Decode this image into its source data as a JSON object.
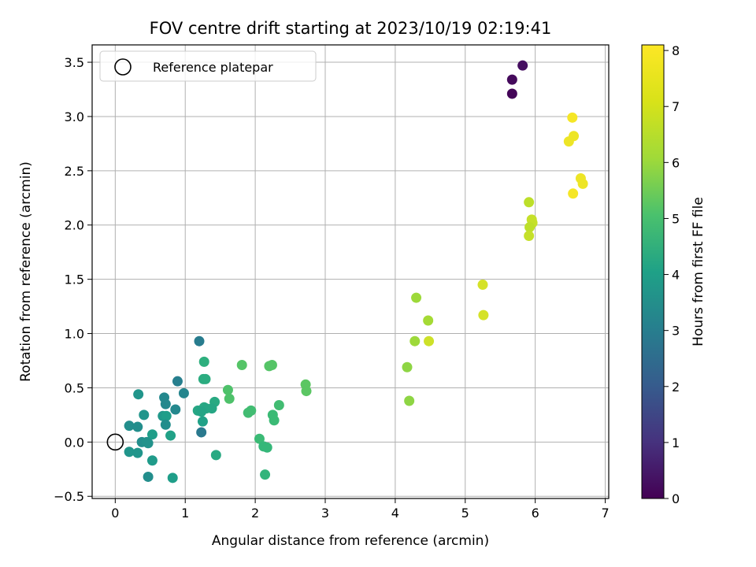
{
  "chart_data": {
    "type": "scatter",
    "title": "FOV centre drift starting at 2023/10/19 02:19:41",
    "xlabel": "Angular distance from reference (arcmin)",
    "ylabel": "Rotation from reference (arcmin)",
    "xlim": [
      -0.33,
      7.05
    ],
    "ylim": [
      -0.52,
      3.66
    ],
    "xticks": [
      "0",
      "1",
      "2",
      "3",
      "4",
      "5",
      "6",
      "7"
    ],
    "yticks": [
      "−0.5",
      "0.0",
      "0.5",
      "1.0",
      "1.5",
      "2.0",
      "2.5",
      "3.0",
      "3.5"
    ],
    "grid": true,
    "legend": {
      "placement": "top-left",
      "entries": [
        "Reference platepar"
      ]
    },
    "reference_point": {
      "x": 0.0,
      "y": 0.0
    },
    "colorbar": {
      "label": "Hours from first FF file",
      "colormap": "viridis",
      "range": [
        0,
        8.1
      ],
      "ticks": [
        "0",
        "1",
        "2",
        "3",
        "4",
        "5",
        "6",
        "7",
        "8"
      ]
    },
    "points": [
      {
        "x": 5.82,
        "y": 3.47,
        "h": 0.3
      },
      {
        "x": 5.67,
        "y": 3.34,
        "h": 0.2
      },
      {
        "x": 5.67,
        "y": 3.21,
        "h": 0.1
      },
      {
        "x": 6.53,
        "y": 2.99,
        "h": 8.0
      },
      {
        "x": 6.55,
        "y": 2.82,
        "h": 7.9
      },
      {
        "x": 6.48,
        "y": 2.77,
        "h": 7.9
      },
      {
        "x": 6.65,
        "y": 2.43,
        "h": 7.9
      },
      {
        "x": 6.68,
        "y": 2.38,
        "h": 7.9
      },
      {
        "x": 6.54,
        "y": 2.29,
        "h": 8.0
      },
      {
        "x": 5.91,
        "y": 2.21,
        "h": 7.3
      },
      {
        "x": 5.95,
        "y": 2.05,
        "h": 7.4
      },
      {
        "x": 5.96,
        "y": 2.02,
        "h": 7.4
      },
      {
        "x": 5.92,
        "y": 1.98,
        "h": 7.3
      },
      {
        "x": 5.91,
        "y": 1.9,
        "h": 7.4
      },
      {
        "x": 5.25,
        "y": 1.45,
        "h": 7.6
      },
      {
        "x": 5.26,
        "y": 1.17,
        "h": 7.6
      },
      {
        "x": 4.3,
        "y": 1.33,
        "h": 6.9
      },
      {
        "x": 4.47,
        "y": 1.12,
        "h": 7.0
      },
      {
        "x": 4.28,
        "y": 0.93,
        "h": 6.9
      },
      {
        "x": 4.48,
        "y": 0.93,
        "h": 7.5
      },
      {
        "x": 4.17,
        "y": 0.69,
        "h": 6.7
      },
      {
        "x": 4.2,
        "y": 0.38,
        "h": 6.7
      },
      {
        "x": 2.72,
        "y": 0.53,
        "h": 6.0
      },
      {
        "x": 2.73,
        "y": 0.47,
        "h": 6.0
      },
      {
        "x": 2.24,
        "y": 0.71,
        "h": 5.9
      },
      {
        "x": 2.2,
        "y": 0.7,
        "h": 5.9
      },
      {
        "x": 1.81,
        "y": 0.71,
        "h": 5.9
      },
      {
        "x": 1.61,
        "y": 0.48,
        "h": 5.8
      },
      {
        "x": 1.63,
        "y": 0.4,
        "h": 5.8
      },
      {
        "x": 2.34,
        "y": 0.34,
        "h": 5.6
      },
      {
        "x": 1.94,
        "y": 0.29,
        "h": 5.6
      },
      {
        "x": 1.9,
        "y": 0.27,
        "h": 5.6
      },
      {
        "x": 2.25,
        "y": 0.25,
        "h": 5.5
      },
      {
        "x": 2.27,
        "y": 0.2,
        "h": 5.5
      },
      {
        "x": 2.06,
        "y": 0.03,
        "h": 5.5
      },
      {
        "x": 2.12,
        "y": -0.04,
        "h": 5.4
      },
      {
        "x": 2.17,
        "y": -0.05,
        "h": 5.4
      },
      {
        "x": 2.14,
        "y": -0.3,
        "h": 5.3
      },
      {
        "x": 1.44,
        "y": -0.12,
        "h": 4.9
      },
      {
        "x": 1.27,
        "y": 0.74,
        "h": 5.1
      },
      {
        "x": 1.26,
        "y": 0.58,
        "h": 5.0
      },
      {
        "x": 1.29,
        "y": 0.58,
        "h": 5.0
      },
      {
        "x": 1.42,
        "y": 0.37,
        "h": 4.9
      },
      {
        "x": 1.27,
        "y": 0.32,
        "h": 4.9
      },
      {
        "x": 1.3,
        "y": 0.31,
        "h": 4.8
      },
      {
        "x": 1.38,
        "y": 0.31,
        "h": 4.8
      },
      {
        "x": 1.18,
        "y": 0.29,
        "h": 4.8
      },
      {
        "x": 1.23,
        "y": 0.28,
        "h": 4.7
      },
      {
        "x": 1.25,
        "y": 0.19,
        "h": 4.6
      },
      {
        "x": 1.2,
        "y": 0.93,
        "h": 3.4
      },
      {
        "x": 1.23,
        "y": 0.09,
        "h": 3.3
      },
      {
        "x": 0.89,
        "y": 0.56,
        "h": 3.5
      },
      {
        "x": 0.98,
        "y": 0.45,
        "h": 3.7
      },
      {
        "x": 0.7,
        "y": 0.41,
        "h": 3.8
      },
      {
        "x": 0.72,
        "y": 0.35,
        "h": 3.8
      },
      {
        "x": 0.86,
        "y": 0.3,
        "h": 3.8
      },
      {
        "x": 0.68,
        "y": 0.24,
        "h": 4.3
      },
      {
        "x": 0.73,
        "y": 0.24,
        "h": 4.5
      },
      {
        "x": 0.72,
        "y": 0.16,
        "h": 4.0
      },
      {
        "x": 0.79,
        "y": 0.06,
        "h": 4.6
      },
      {
        "x": 0.53,
        "y": 0.07,
        "h": 4.5
      },
      {
        "x": 0.33,
        "y": 0.44,
        "h": 4.2
      },
      {
        "x": 0.41,
        "y": 0.25,
        "h": 4.2
      },
      {
        "x": 0.2,
        "y": 0.15,
        "h": 4.0
      },
      {
        "x": 0.32,
        "y": 0.14,
        "h": 4.0
      },
      {
        "x": 0.38,
        "y": 0.0,
        "h": 4.0
      },
      {
        "x": 0.45,
        "y": 0.0,
        "h": 4.1
      },
      {
        "x": 0.47,
        "y": -0.01,
        "h": 4.1
      },
      {
        "x": 0.2,
        "y": -0.09,
        "h": 4.2
      },
      {
        "x": 0.32,
        "y": -0.1,
        "h": 4.2
      },
      {
        "x": 0.53,
        "y": -0.17,
        "h": 4.4
      },
      {
        "x": 0.47,
        "y": -0.32,
        "h": 4.0
      },
      {
        "x": 0.82,
        "y": -0.33,
        "h": 4.5
      }
    ]
  }
}
